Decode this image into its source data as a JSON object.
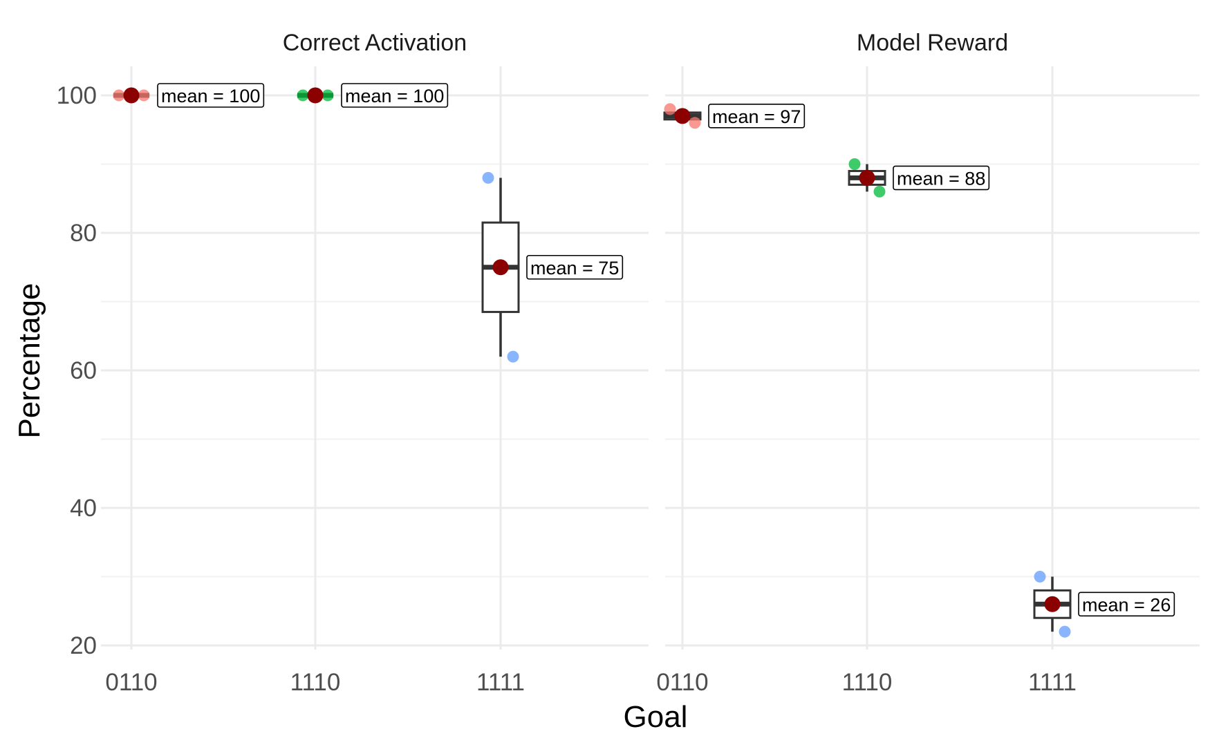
{
  "chart_data": {
    "type": "box",
    "xlabel": "Goal",
    "ylabel": "Percentage",
    "ylim": [
      20,
      100
    ],
    "yticks": [
      20,
      40,
      60,
      80,
      100
    ],
    "categories": [
      "0110",
      "1110",
      "1111"
    ],
    "mean_label_prefix": "mean = ",
    "colors": {
      "0110": "#f8766d",
      "1110": "#00ba38",
      "1111": "#619cff",
      "mean_point": "#8b0000",
      "box": "#333333"
    },
    "grid": true,
    "legend": "none",
    "panels": [
      {
        "title": "Correct Activation",
        "groups": [
          {
            "category": "0110",
            "points": [
              100,
              100
            ],
            "box": {
              "min": 100,
              "q1": 100,
              "median": 100,
              "q3": 100,
              "max": 100
            },
            "mean": 100,
            "mean_label": "mean = 100"
          },
          {
            "category": "1110",
            "points": [
              100,
              100
            ],
            "box": {
              "min": 100,
              "q1": 100,
              "median": 100,
              "q3": 100,
              "max": 100
            },
            "mean": 100,
            "mean_label": "mean = 100"
          },
          {
            "category": "1111",
            "points": [
              88,
              62
            ],
            "box": {
              "min": 62,
              "q1": 68.5,
              "median": 75,
              "q3": 81.5,
              "max": 88
            },
            "mean": 75,
            "mean_label": "mean = 75"
          }
        ]
      },
      {
        "title": "Model Reward",
        "groups": [
          {
            "category": "0110",
            "points": [
              98,
              96
            ],
            "box": {
              "min": 96,
              "q1": 96.5,
              "median": 97,
              "q3": 97.5,
              "max": 98
            },
            "mean": 97,
            "mean_label": "mean = 97"
          },
          {
            "category": "1110",
            "points": [
              90,
              86
            ],
            "box": {
              "min": 86,
              "q1": 87,
              "median": 88,
              "q3": 89,
              "max": 90
            },
            "mean": 88,
            "mean_label": "mean = 88"
          },
          {
            "category": "1111",
            "points": [
              30,
              22
            ],
            "box": {
              "min": 22,
              "q1": 24,
              "median": 26,
              "q3": 28,
              "max": 30
            },
            "mean": 26,
            "mean_label": "mean = 26"
          }
        ]
      }
    ]
  }
}
